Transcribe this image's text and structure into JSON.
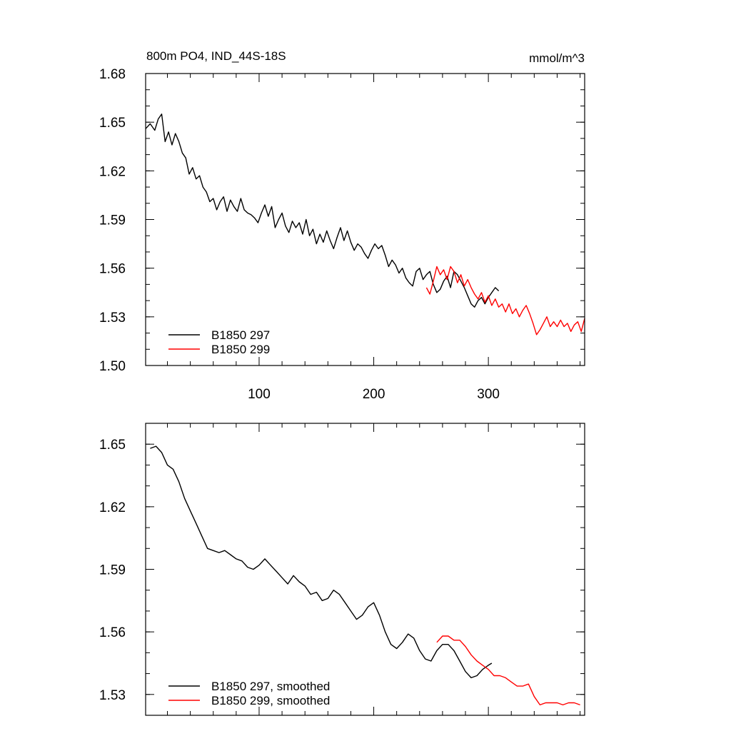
{
  "chart_data": [
    {
      "type": "line",
      "title": "800m PO4, IND_44S-18S",
      "units": "mmol/m^3",
      "xlim": [
        1,
        384
      ],
      "ylim": [
        1.5,
        1.68
      ],
      "xticks": [
        100,
        200,
        300
      ],
      "yticks": [
        1.5,
        1.53,
        1.56,
        1.59,
        1.62,
        1.65,
        1.68
      ],
      "ytick_labels": [
        "1.50",
        "1.53",
        "1.56",
        "1.59",
        "1.62",
        "1.65",
        "1.68"
      ],
      "legend_position": "bottom-left",
      "series": [
        {
          "name": "B1850 297",
          "color": "#000000",
          "x": [
            1,
            5,
            9,
            12,
            15,
            18,
            21,
            24,
            27,
            30,
            33,
            36,
            39,
            42,
            45,
            48,
            51,
            54,
            57,
            60,
            63,
            66,
            69,
            72,
            75,
            78,
            81,
            84,
            87,
            90,
            93,
            96,
            99,
            102,
            105,
            108,
            111,
            114,
            117,
            120,
            123,
            126,
            129,
            132,
            135,
            138,
            141,
            144,
            147,
            150,
            153,
            156,
            159,
            162,
            165,
            168,
            171,
            174,
            177,
            180,
            183,
            186,
            189,
            192,
            195,
            198,
            201,
            204,
            207,
            210,
            213,
            216,
            219,
            222,
            225,
            228,
            231,
            234,
            237,
            240,
            243,
            246,
            249,
            252,
            255,
            258,
            261,
            264,
            267,
            270,
            273,
            276,
            279,
            282,
            285,
            288,
            291,
            294,
            297,
            300,
            303,
            306,
            309
          ],
          "y": [
            1.646,
            1.649,
            1.645,
            1.652,
            1.655,
            1.638,
            1.644,
            1.636,
            1.643,
            1.638,
            1.631,
            1.628,
            1.618,
            1.622,
            1.615,
            1.617,
            1.61,
            1.607,
            1.601,
            1.603,
            1.596,
            1.601,
            1.604,
            1.595,
            1.602,
            1.598,
            1.595,
            1.603,
            1.596,
            1.594,
            1.593,
            1.591,
            1.588,
            1.594,
            1.599,
            1.592,
            1.598,
            1.585,
            1.59,
            1.594,
            1.586,
            1.582,
            1.589,
            1.585,
            1.588,
            1.581,
            1.59,
            1.58,
            1.584,
            1.575,
            1.581,
            1.576,
            1.583,
            1.577,
            1.572,
            1.579,
            1.585,
            1.577,
            1.583,
            1.576,
            1.571,
            1.575,
            1.573,
            1.569,
            1.566,
            1.571,
            1.575,
            1.572,
            1.574,
            1.568,
            1.561,
            1.565,
            1.562,
            1.557,
            1.56,
            1.554,
            1.551,
            1.549,
            1.558,
            1.56,
            1.553,
            1.556,
            1.558,
            1.55,
            1.545,
            1.547,
            1.552,
            1.555,
            1.548,
            1.558,
            1.556,
            1.552,
            1.548,
            1.543,
            1.538,
            1.536,
            1.54,
            1.542,
            1.538,
            1.542,
            1.545,
            1.548,
            1.546
          ]
        },
        {
          "name": "B1850 299",
          "color": "#ff0000",
          "x": [
            246,
            249,
            252,
            255,
            258,
            261,
            264,
            267,
            270,
            273,
            276,
            279,
            282,
            285,
            288,
            291,
            294,
            297,
            300,
            303,
            306,
            309,
            312,
            315,
            318,
            321,
            324,
            327,
            330,
            333,
            336,
            339,
            342,
            345,
            348,
            351,
            354,
            357,
            360,
            363,
            366,
            369,
            372,
            375,
            378,
            381,
            384
          ],
          "y": [
            1.548,
            1.544,
            1.552,
            1.561,
            1.556,
            1.559,
            1.553,
            1.561,
            1.558,
            1.551,
            1.556,
            1.549,
            1.553,
            1.548,
            1.544,
            1.541,
            1.545,
            1.539,
            1.543,
            1.537,
            1.541,
            1.536,
            1.538,
            1.533,
            1.538,
            1.532,
            1.535,
            1.53,
            1.534,
            1.537,
            1.532,
            1.526,
            1.519,
            1.522,
            1.526,
            1.53,
            1.524,
            1.527,
            1.524,
            1.528,
            1.524,
            1.526,
            1.521,
            1.525,
            1.527,
            1.521,
            1.529
          ]
        }
      ]
    },
    {
      "type": "line",
      "xlim": [
        1,
        384
      ],
      "ylim": [
        1.52,
        1.66
      ],
      "yticks": [
        1.53,
        1.56,
        1.59,
        1.62,
        1.65
      ],
      "ytick_labels": [
        "1.53",
        "1.56",
        "1.59",
        "1.62",
        "1.65"
      ],
      "xticks": [
        100,
        200,
        300
      ],
      "legend_position": "bottom-left",
      "series": [
        {
          "name": "B1850 297, smoothed",
          "color": "#000000",
          "x": [
            5,
            10,
            15,
            20,
            25,
            30,
            35,
            40,
            45,
            50,
            55,
            60,
            65,
            70,
            75,
            80,
            85,
            90,
            95,
            100,
            105,
            110,
            115,
            120,
            125,
            130,
            135,
            140,
            145,
            150,
            155,
            160,
            165,
            170,
            175,
            180,
            185,
            190,
            195,
            200,
            205,
            210,
            215,
            220,
            225,
            230,
            235,
            240,
            245,
            250,
            255,
            260,
            265,
            270,
            275,
            280,
            285,
            290,
            295,
            300,
            303
          ],
          "y": [
            1.648,
            1.649,
            1.646,
            1.64,
            1.638,
            1.632,
            1.624,
            1.618,
            1.612,
            1.606,
            1.6,
            1.599,
            1.598,
            1.599,
            1.597,
            1.595,
            1.594,
            1.591,
            1.59,
            1.592,
            1.595,
            1.592,
            1.589,
            1.586,
            1.583,
            1.587,
            1.584,
            1.582,
            1.578,
            1.579,
            1.575,
            1.576,
            1.58,
            1.578,
            1.574,
            1.57,
            1.566,
            1.568,
            1.572,
            1.574,
            1.568,
            1.56,
            1.554,
            1.552,
            1.555,
            1.559,
            1.557,
            1.551,
            1.547,
            1.546,
            1.551,
            1.554,
            1.554,
            1.551,
            1.546,
            1.541,
            1.538,
            1.539,
            1.542,
            1.544,
            1.545
          ]
        },
        {
          "name": "B1850 299, smoothed",
          "color": "#ff0000",
          "x": [
            255,
            260,
            265,
            270,
            275,
            280,
            285,
            290,
            295,
            300,
            305,
            310,
            315,
            320,
            325,
            330,
            335,
            340,
            345,
            350,
            355,
            360,
            365,
            370,
            375,
            380
          ],
          "y": [
            1.555,
            1.558,
            1.558,
            1.556,
            1.556,
            1.553,
            1.549,
            1.546,
            1.544,
            1.542,
            1.539,
            1.539,
            1.538,
            1.536,
            1.534,
            1.534,
            1.535,
            1.529,
            1.525,
            1.526,
            1.526,
            1.526,
            1.525,
            1.526,
            1.526,
            1.525
          ]
        }
      ]
    }
  ]
}
